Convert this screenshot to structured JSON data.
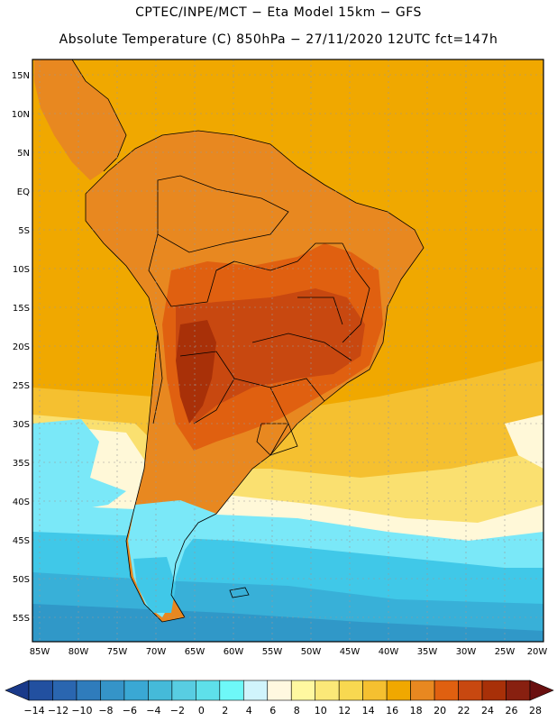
{
  "header": {
    "line1": "CPTEC/INPE/MCT −  Eta Model 15km − GFS",
    "line2": "Absolute Temperature (C) 850hPa − 27/11/2020 12UTC fct=147h"
  },
  "map": {
    "lat_labels": [
      "15N",
      "10N",
      "5N",
      "EQ",
      "5S",
      "10S",
      "15S",
      "20S",
      "25S",
      "30S",
      "35S",
      "40S",
      "45S",
      "50S",
      "55S"
    ],
    "lon_labels": [
      "85W",
      "80W",
      "75W",
      "70W",
      "65W",
      "60W",
      "55W",
      "50W",
      "45W",
      "40W",
      "35W",
      "30W",
      "25W",
      "20W"
    ],
    "colors": {
      "ocean_n": "#f0a800",
      "land_hot": "#e07818",
      "land_hotter": "#c85810",
      "land_hottest": "#a83c08",
      "subtrop": "#f5c030",
      "mid": "#fae070",
      "pale": "#fff8d8",
      "cold1": "#7ae8f8",
      "cold2": "#40c8e8",
      "cold3": "#38b0d8",
      "cold4": "#3098c8"
    }
  },
  "colorbar": {
    "labels": [
      "-14",
      "-12",
      "-10",
      "-8",
      "-6",
      "-4",
      "-2",
      "0",
      "2",
      "4",
      "6",
      "8",
      "10",
      "12",
      "14",
      "16",
      "18",
      "20",
      "22",
      "24",
      "26",
      "28"
    ],
    "colors": [
      "#1a3a8a",
      "#2250a0",
      "#2a66b0",
      "#2f7cbc",
      "#3594c8",
      "#3aa8d4",
      "#45bad9",
      "#58cde2",
      "#5ee0ea",
      "#6ef8f8",
      "#d0f4fc",
      "#fff8e0",
      "#fff8a0",
      "#fbe878",
      "#f8d850",
      "#f5c030",
      "#f0a800",
      "#e88820",
      "#e06010",
      "#c84810",
      "#a83008",
      "#882010",
      "#6a1010"
    ]
  }
}
